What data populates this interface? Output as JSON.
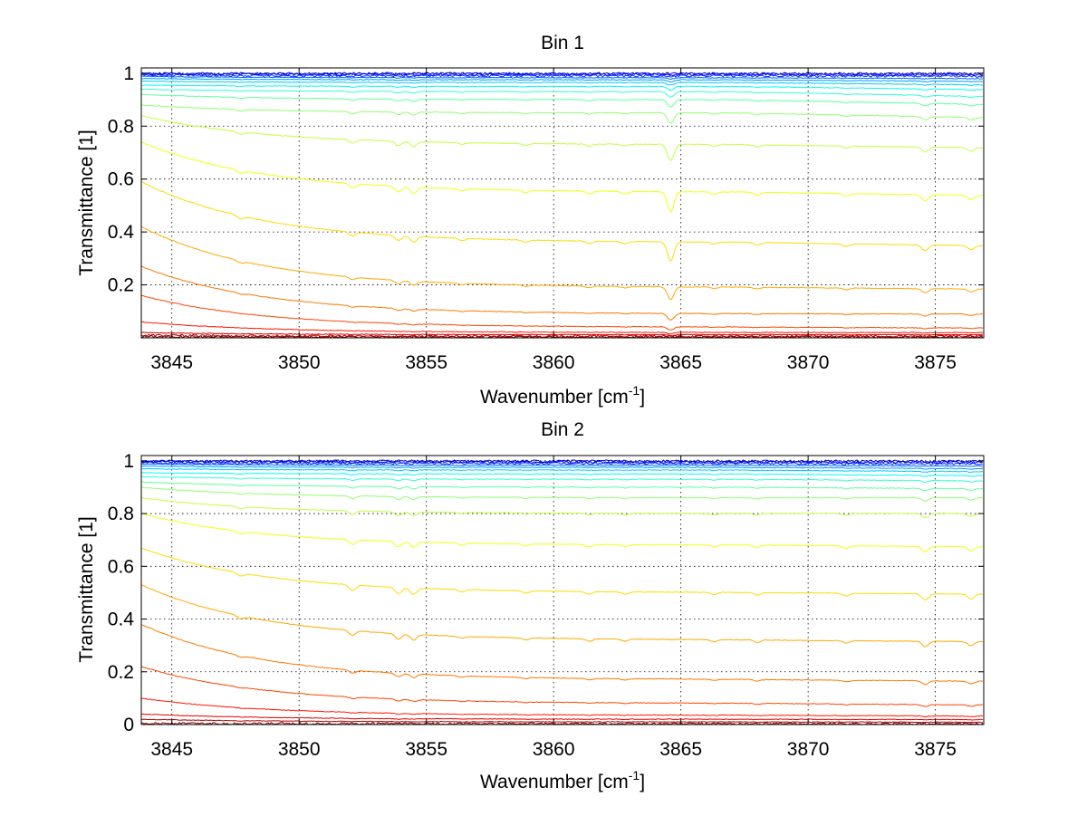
{
  "figure": {
    "background": "#ffffff"
  },
  "chart_data": [
    {
      "type": "line",
      "title": "Bin 1",
      "xlabel": "Wavenumber [cm",
      "xlabel_sup": "-1",
      "xlabel_end": "]",
      "ylabel": "Transmittance [1]",
      "xlim": [
        3843.8,
        3876.9
      ],
      "ylim": [
        0,
        1.02
      ],
      "xticks": [
        3845,
        3850,
        3855,
        3860,
        3865,
        3870,
        3875
      ],
      "xtick_labels": [
        "3845",
        "3850",
        "3855",
        "3860",
        "3865",
        "3870",
        "3875"
      ],
      "yticks": [
        0.2,
        0.4,
        0.6,
        0.8,
        1
      ],
      "ytick_labels": [
        "0.2",
        "0.4",
        "0.6",
        "0.8",
        "1"
      ],
      "grid": true,
      "grid_style": "dotted",
      "colormap": "jet",
      "series_levels": [
        0.003,
        0.006,
        0.012,
        0.02,
        0.04,
        0.09,
        0.19,
        0.36,
        0.55,
        0.73,
        0.85,
        0.9,
        0.93,
        0.95,
        0.965,
        0.975,
        0.983,
        0.99,
        0.995,
        0.999
      ],
      "series_start": [
        0.005,
        0.01,
        0.02,
        0.06,
        0.16,
        0.27,
        0.42,
        0.59,
        0.74,
        0.84,
        0.88,
        0.92,
        0.94,
        0.955,
        0.97,
        0.98,
        0.988,
        0.993,
        0.997,
        0.999
      ],
      "series_end": [
        0.003,
        0.006,
        0.012,
        0.02,
        0.035,
        0.09,
        0.18,
        0.34,
        0.53,
        0.71,
        0.82,
        0.87,
        0.9,
        0.93,
        0.95,
        0.965,
        0.977,
        0.987,
        0.994,
        0.998
      ],
      "absorption_lines": [
        {
          "x": 3847.7,
          "depth": 0.4
        },
        {
          "x": 3852.1,
          "depth": 0.55
        },
        {
          "x": 3853.9,
          "depth": 0.7
        },
        {
          "x": 3854.5,
          "depth": 0.8
        },
        {
          "x": 3856.4,
          "depth": 0.3
        },
        {
          "x": 3858.9,
          "depth": 0.3
        },
        {
          "x": 3861.4,
          "depth": 0.35
        },
        {
          "x": 3862.8,
          "depth": 0.3
        },
        {
          "x": 3864.6,
          "depth": 2.6
        },
        {
          "x": 3866.3,
          "depth": 0.3
        },
        {
          "x": 3868.0,
          "depth": 0.35
        },
        {
          "x": 3871.5,
          "depth": 0.35
        },
        {
          "x": 3874.6,
          "depth": 0.8
        },
        {
          "x": 3876.4,
          "depth": 0.6
        }
      ]
    },
    {
      "type": "line",
      "title": "Bin 2",
      "xlabel": "Wavenumber [cm",
      "xlabel_sup": "-1",
      "xlabel_end": "]",
      "ylabel": "Transmittance [1]",
      "xlim": [
        3843.8,
        3876.9
      ],
      "ylim": [
        0,
        1.02
      ],
      "xticks": [
        3845,
        3850,
        3855,
        3860,
        3865,
        3870,
        3875
      ],
      "xtick_labels": [
        "3845",
        "3850",
        "3855",
        "3860",
        "3865",
        "3870",
        "3875"
      ],
      "yticks": [
        0,
        0.2,
        0.4,
        0.6,
        0.8,
        1
      ],
      "ytick_labels": [
        "0",
        "0.2",
        "0.4",
        "0.6",
        "0.8",
        "1"
      ],
      "grid": true,
      "grid_style": "dotted",
      "colormap": "jet",
      "series_levels": [
        0.003,
        0.01,
        0.02,
        0.035,
        0.08,
        0.17,
        0.32,
        0.5,
        0.68,
        0.8,
        0.86,
        0.9,
        0.93,
        0.95,
        0.965,
        0.975,
        0.983,
        0.99,
        0.995,
        0.999
      ],
      "series_start": [
        0.005,
        0.02,
        0.04,
        0.1,
        0.22,
        0.38,
        0.53,
        0.67,
        0.8,
        0.86,
        0.9,
        0.92,
        0.94,
        0.955,
        0.97,
        0.98,
        0.988,
        0.993,
        0.997,
        0.999
      ],
      "series_end": [
        0.003,
        0.008,
        0.018,
        0.03,
        0.07,
        0.16,
        0.31,
        0.49,
        0.67,
        0.8,
        0.86,
        0.89,
        0.92,
        0.94,
        0.955,
        0.967,
        0.978,
        0.987,
        0.994,
        0.998
      ],
      "absorption_lines": [
        {
          "x": 3847.7,
          "depth": 0.4
        },
        {
          "x": 3852.1,
          "depth": 0.7
        },
        {
          "x": 3853.9,
          "depth": 0.8
        },
        {
          "x": 3854.5,
          "depth": 0.8
        },
        {
          "x": 3856.4,
          "depth": 0.3
        },
        {
          "x": 3858.9,
          "depth": 0.3
        },
        {
          "x": 3861.4,
          "depth": 0.35
        },
        {
          "x": 3862.8,
          "depth": 0.3
        },
        {
          "x": 3866.3,
          "depth": 0.3
        },
        {
          "x": 3868.0,
          "depth": 0.35
        },
        {
          "x": 3871.5,
          "depth": 0.35
        },
        {
          "x": 3874.6,
          "depth": 0.8
        },
        {
          "x": 3876.4,
          "depth": 0.6
        }
      ]
    }
  ]
}
